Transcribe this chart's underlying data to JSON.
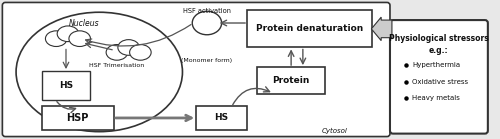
{
  "bg_color": "#e8e8e8",
  "nucleus_label": "Nucleus",
  "hsf_activation_label": "HSF activation",
  "monomer_label": "(Monomer form)",
  "hsf_trimer_label": "HSF Trimerisation",
  "cytosol_label": "Cytosol",
  "protein_denat_label": "Protein denaturation",
  "protein_label": "Protein",
  "hs_label1": "HS",
  "hs_label2": "HS",
  "hsp_label": "HSP",
  "bullets": [
    "Hyperthermia",
    "Oxidative stress",
    "Heavy metals"
  ],
  "text_color": "#111111",
  "edge_color": "#333333",
  "arrow_color": "#555555"
}
